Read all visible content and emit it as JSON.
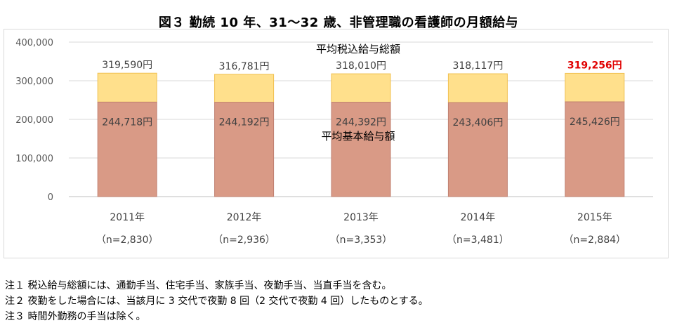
{
  "chart_data": {
    "type": "bar",
    "title": "図３ 勤続 10 年、31～32 歳、非管理職の看護師の月額給与",
    "categories": [
      "2011年",
      "2012年",
      "2013年",
      "2014年",
      "2015年"
    ],
    "sample_sizes": [
      "（n=2,830）",
      "（n=2,936）",
      "（n=3,353）",
      "（n=3,481）",
      "（n=2,884）"
    ],
    "series": [
      {
        "name": "平均基本給与額",
        "values": [
          244718,
          244192,
          244392,
          243406,
          245426
        ],
        "labels": [
          "244,718円",
          "244,192円",
          "244,392円",
          "243,406円",
          "245,426円"
        ],
        "color": "#d99a86"
      },
      {
        "name": "平均税込給与総額",
        "values": [
          319590,
          316781,
          318010,
          318117,
          319256
        ],
        "labels": [
          "319,590円",
          "316,781円",
          "318,010円",
          "318,117円",
          "319,256円"
        ],
        "color": "#ffe08c"
      }
    ],
    "highlight_index": 4,
    "highlight_color": "#e00000",
    "ylim": [
      0,
      400000
    ],
    "yticks": [
      "0",
      "100,000",
      "200,000",
      "300,000",
      "400,000"
    ],
    "ytick_values": [
      0,
      100000,
      200000,
      300000,
      400000
    ],
    "grid": true,
    "xlabel": "",
    "ylabel": ""
  },
  "notes": [
    "注１ 税込給与総額には、通勤手当、住宅手当、家族手当、夜勤手当、当直手当を含む。",
    "注２ 夜勤をした場合には、当該月に 3 交代で夜勤 8 回（2 交代で夜勤 4 回）したものとする。",
    "注３ 時間外勤務の手当は除く。"
  ]
}
